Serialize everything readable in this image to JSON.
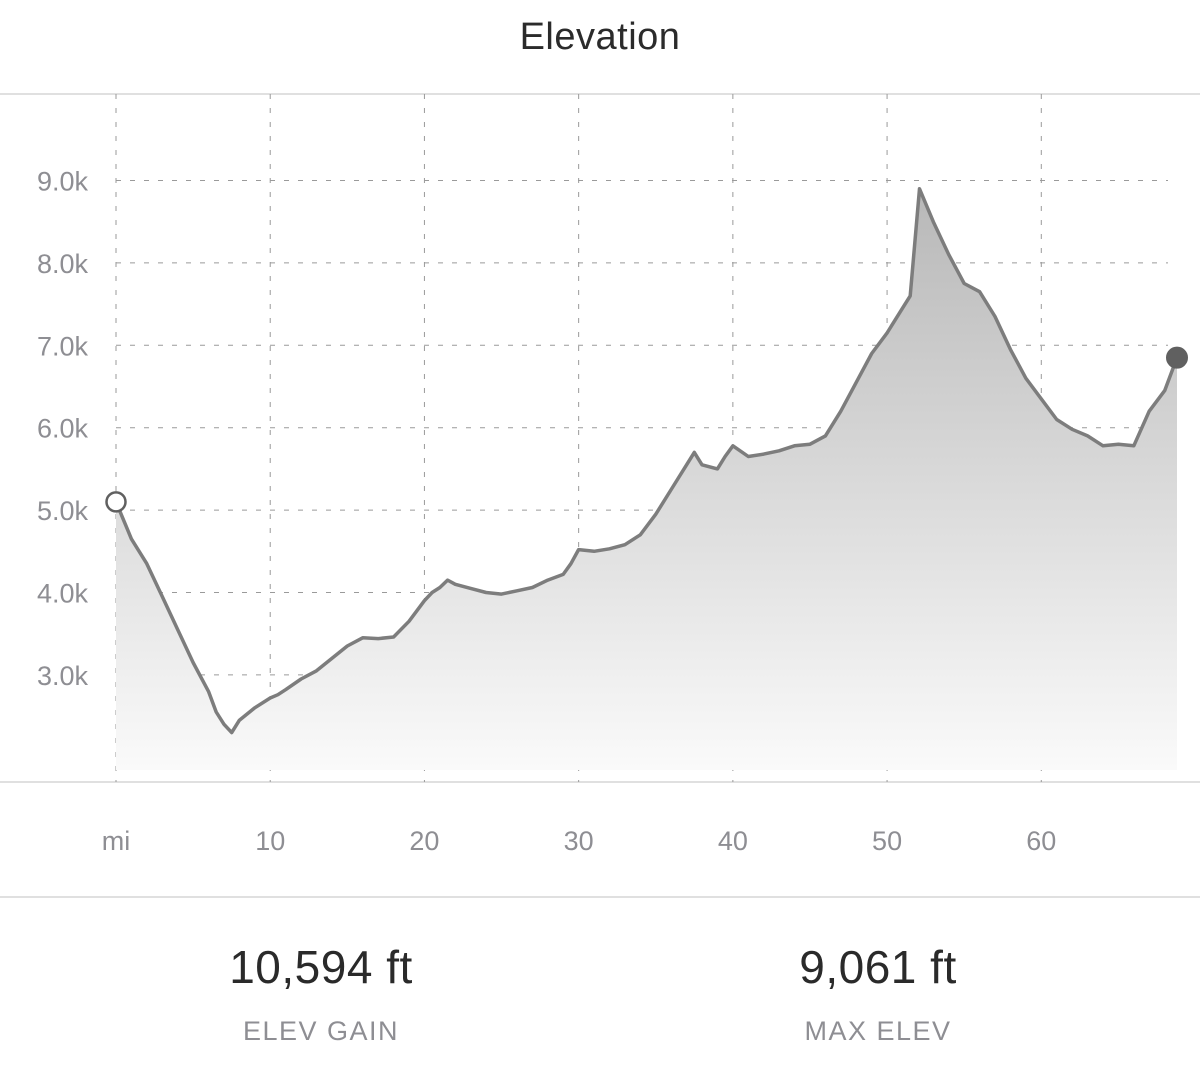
{
  "title": "Elevation",
  "colors": {
    "line": "#7d7d7d",
    "fill_top": "#b8b8b8",
    "fill_bottom": "#fafafa",
    "grid": "#9a9a9a",
    "axis_text": "#8e8e93",
    "end_marker": "#606060"
  },
  "chart_data": {
    "type": "area",
    "x_unit_label": "mi",
    "x_ticks": [
      10,
      20,
      30,
      40,
      50,
      60
    ],
    "y_ticks": [
      3000,
      4000,
      5000,
      6000,
      7000,
      8000,
      9000
    ],
    "y_tick_labels": [
      "3.0k",
      "4.0k",
      "5.0k",
      "6.0k",
      "7.0k",
      "8.0k",
      "9.0k"
    ],
    "xlim": [
      0,
      68.8
    ],
    "ylim": [
      1700,
      10050
    ],
    "grid": true,
    "start_marker": "hollow-circle",
    "end_marker": "filled-circle",
    "series": [
      {
        "x": [
          0,
          1,
          2,
          3,
          4,
          5,
          6,
          6.5,
          7,
          7.5,
          8,
          9,
          10,
          10.5,
          11,
          12,
          13,
          14,
          15,
          16,
          17,
          18,
          19,
          20,
          20.5,
          21,
          21.5,
          22,
          23,
          24,
          25,
          26,
          27,
          28,
          29,
          29.5,
          30,
          31,
          32,
          33,
          34,
          35,
          36,
          37,
          37.5,
          38,
          39,
          39.5,
          40,
          41,
          42,
          43,
          44,
          45,
          46,
          47,
          48,
          49,
          50,
          51,
          51.5,
          52.1,
          53,
          54,
          55,
          56,
          57,
          58,
          59,
          60,
          61,
          62,
          63,
          64,
          65,
          66,
          67,
          68,
          68.8
        ],
        "y": [
          5100,
          4650,
          4350,
          3950,
          3550,
          3150,
          2800,
          2550,
          2400,
          2300,
          2450,
          2600,
          2720,
          2760,
          2820,
          2950,
          3050,
          3200,
          3350,
          3450,
          3440,
          3460,
          3650,
          3900,
          4000,
          4060,
          4150,
          4100,
          4050,
          4000,
          3980,
          4020,
          4060,
          4150,
          4220,
          4350,
          4520,
          4500,
          4530,
          4580,
          4700,
          4950,
          5250,
          5550,
          5700,
          5550,
          5500,
          5650,
          5780,
          5650,
          5680,
          5720,
          5780,
          5800,
          5900,
          6200,
          6550,
          6900,
          7150,
          7450,
          7600,
          8900,
          8500,
          8100,
          7750,
          7650,
          7350,
          6950,
          6600,
          6350,
          6100,
          5980,
          5900,
          5780,
          5800,
          5780,
          6200,
          6450,
          6850
        ]
      }
    ]
  },
  "stats": [
    {
      "value": "10,594 ft",
      "label": "ELEV GAIN"
    },
    {
      "value": "9,061 ft",
      "label": "MAX ELEV"
    }
  ]
}
